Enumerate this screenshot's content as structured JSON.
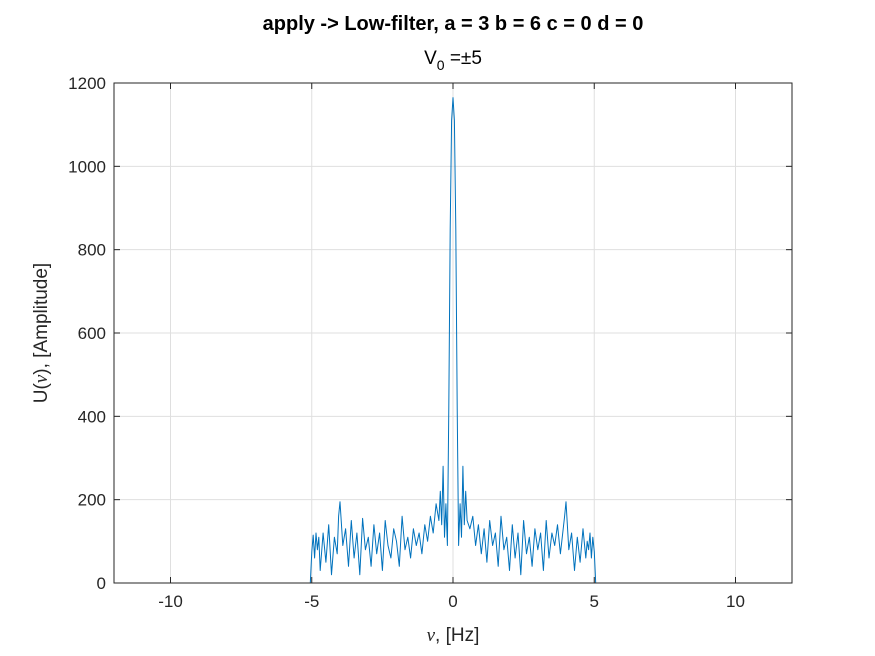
{
  "chart_data": {
    "type": "line",
    "title": "apply -> Low-filter, a = 3 b = 6 c = 0 d = 0",
    "subtitle": {
      "prefix": "V",
      "subscript": "0",
      "suffix": " =±5"
    },
    "xlabel": {
      "symbol": "ν",
      "text": ", [Hz]"
    },
    "ylabel": {
      "prefix": "U(",
      "symbol": "ν",
      "suffix": "), [Amplitude]"
    },
    "xlim": [
      -12,
      12
    ],
    "ylim": [
      0,
      1200
    ],
    "xticks": [
      -10,
      -5,
      0,
      5,
      10
    ],
    "yticks": [
      0,
      200,
      400,
      600,
      800,
      1000,
      1200
    ],
    "grid": true,
    "series": [
      {
        "color": "#0072BD",
        "x": [
          -12,
          -5.05,
          -5.0,
          -4.95,
          -4.9,
          -4.85,
          -4.8,
          -4.75,
          -4.7,
          -4.6,
          -4.5,
          -4.4,
          -4.3,
          -4.2,
          -4.1,
          -4.05,
          -4.0,
          -3.9,
          -3.8,
          -3.7,
          -3.6,
          -3.5,
          -3.4,
          -3.3,
          -3.2,
          -3.1,
          -3.0,
          -2.9,
          -2.8,
          -2.7,
          -2.6,
          -2.5,
          -2.4,
          -2.3,
          -2.2,
          -2.1,
          -2.0,
          -1.9,
          -1.8,
          -1.7,
          -1.6,
          -1.5,
          -1.4,
          -1.3,
          -1.2,
          -1.1,
          -1.0,
          -0.9,
          -0.8,
          -0.7,
          -0.6,
          -0.5,
          -0.45,
          -0.4,
          -0.35,
          -0.3,
          -0.25,
          -0.2,
          -0.15,
          -0.1,
          -0.05,
          0.0,
          0.05,
          0.1,
          0.15,
          0.2,
          0.25,
          0.3,
          0.35,
          0.4,
          0.45,
          0.5,
          0.6,
          0.7,
          0.8,
          0.9,
          1.0,
          1.1,
          1.2,
          1.3,
          1.4,
          1.5,
          1.6,
          1.7,
          1.8,
          1.9,
          2.0,
          2.1,
          2.2,
          2.3,
          2.4,
          2.5,
          2.6,
          2.7,
          2.8,
          2.9,
          3.0,
          3.1,
          3.2,
          3.3,
          3.4,
          3.5,
          3.6,
          3.7,
          3.8,
          3.9,
          3.95,
          4.0,
          4.1,
          4.2,
          4.3,
          4.4,
          4.5,
          4.6,
          4.7,
          4.75,
          4.8,
          4.85,
          4.9,
          4.95,
          5.0,
          5.05,
          12
        ],
        "y": [
          0,
          0,
          75,
          115,
          60,
          120,
          80,
          110,
          30,
          120,
          50,
          140,
          20,
          110,
          70,
          160,
          195,
          90,
          130,
          40,
          150,
          60,
          120,
          20,
          155,
          80,
          110,
          40,
          140,
          70,
          120,
          30,
          150,
          90,
          60,
          130,
          100,
          40,
          160,
          80,
          110,
          60,
          130,
          90,
          120,
          70,
          140,
          100,
          160,
          120,
          190,
          150,
          220,
          140,
          280,
          110,
          190,
          90,
          420,
          850,
          1110,
          1165,
          1110,
          850,
          420,
          90,
          190,
          110,
          280,
          140,
          220,
          150,
          130,
          160,
          90,
          140,
          70,
          130,
          50,
          150,
          90,
          120,
          40,
          160,
          80,
          110,
          30,
          140,
          60,
          120,
          20,
          150,
          70,
          110,
          40,
          130,
          80,
          120,
          30,
          150,
          60,
          120,
          90,
          140,
          70,
          130,
          160,
          195,
          80,
          120,
          30,
          110,
          50,
          130,
          60,
          100,
          80,
          120,
          60,
          110,
          75,
          0,
          0
        ]
      }
    ]
  }
}
